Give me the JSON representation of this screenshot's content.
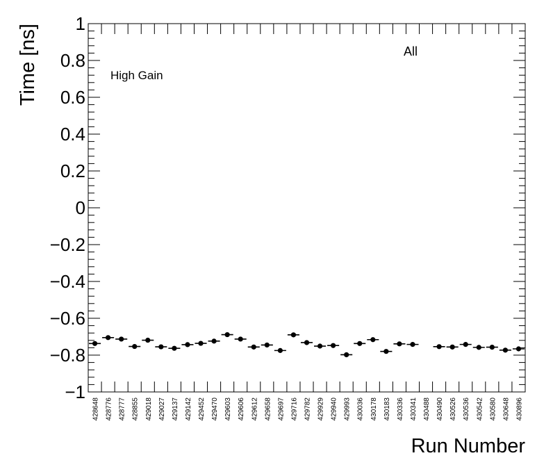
{
  "chart_data": {
    "type": "scatter",
    "title": "",
    "xlabel": "Run Number",
    "ylabel": "Time [ns]",
    "ylim": [
      -1,
      1
    ],
    "yticks": [
      "1",
      "0.8",
      "0.6",
      "0.4",
      "0.2",
      "0",
      "−0.2",
      "−0.4",
      "−0.6",
      "−0.8",
      "−1"
    ],
    "ytick_values": [
      1,
      0.8,
      0.6,
      0.4,
      0.2,
      0,
      -0.2,
      -0.4,
      -0.6,
      -0.8,
      -1
    ],
    "annotations": [
      {
        "text": "High Gain",
        "position": "top-left"
      },
      {
        "text": "All",
        "position": "top-right"
      }
    ],
    "grid": false,
    "categories": [
      "428648",
      "428776",
      "428777",
      "428855",
      "429018",
      "429027",
      "429137",
      "429142",
      "429452",
      "429470",
      "429603",
      "429606",
      "429612",
      "429658",
      "429697",
      "429716",
      "429782",
      "429929",
      "429940",
      "429993",
      "430036",
      "430178",
      "430183",
      "430336",
      "430341",
      "430488",
      "430490",
      "430526",
      "430536",
      "430542",
      "430580",
      "430648",
      "430896"
    ],
    "series": [
      {
        "values": [
          -0.737,
          -0.705,
          -0.713,
          -0.753,
          -0.719,
          -0.755,
          -0.763,
          -0.743,
          -0.736,
          -0.724,
          -0.689,
          -0.713,
          -0.756,
          -0.745,
          -0.775,
          -0.69,
          -0.732,
          -0.751,
          -0.748,
          -0.798,
          -0.737,
          -0.716,
          -0.78,
          -0.739,
          -0.742,
          null,
          -0.754,
          -0.756,
          -0.742,
          -0.758,
          -0.757,
          -0.773,
          -0.766
        ],
        "errors": [
          0.006,
          0.006,
          0.006,
          0.006,
          0.006,
          0.006,
          0.006,
          0.006,
          0.006,
          0.006,
          0.006,
          0.006,
          0.006,
          0.006,
          0.006,
          0.006,
          0.006,
          0.006,
          0.006,
          0.006,
          0.006,
          0.006,
          0.006,
          0.006,
          0.006,
          null,
          0.006,
          0.006,
          0.006,
          0.006,
          0.006,
          0.006,
          0.006
        ]
      }
    ]
  }
}
